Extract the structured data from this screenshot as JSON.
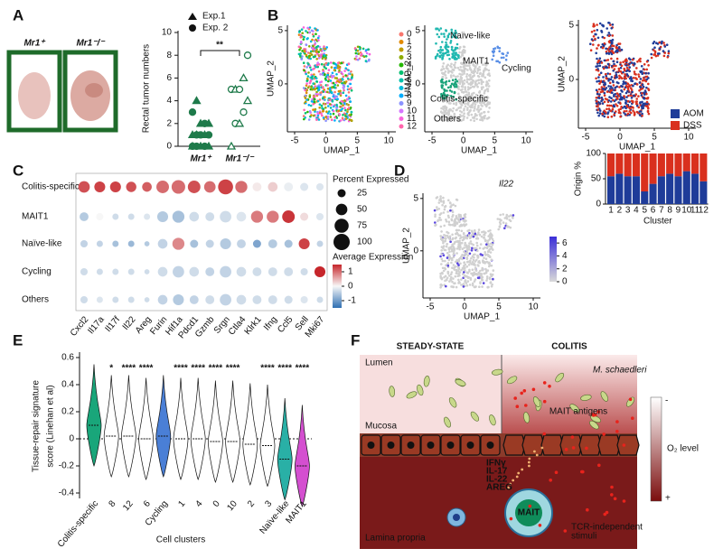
{
  "panel_a": {
    "letter": "A",
    "photo_labels": [
      "Mr1⁺",
      "Mr1⁻/⁻"
    ],
    "legend": [
      "Exp.1",
      "Exp. 2"
    ],
    "y_label": "Rectal tumor numbers",
    "yticks": [
      0,
      2,
      4,
      6,
      8,
      10
    ],
    "significance": "**",
    "categories": [
      "Mr1⁺",
      "Mr1⁻/⁻"
    ],
    "groups": [
      [
        0,
        0,
        0,
        0,
        0,
        0,
        1,
        1,
        1,
        1,
        1,
        1,
        2,
        2,
        2,
        3,
        4
      ],
      [
        0,
        2,
        2,
        3,
        4,
        5,
        5,
        5,
        6,
        8
      ]
    ]
  },
  "panel_b": {
    "letter": "B",
    "umap_x_label": "UMAP_1",
    "umap_y_label": "UMAP_2",
    "xticks": [
      -5,
      0,
      5,
      10
    ],
    "yticks": [
      5,
      0
    ],
    "clusters": [
      "0",
      "1",
      "2",
      "3",
      "4",
      "5",
      "6",
      "7",
      "8",
      "9",
      "10",
      "11",
      "12"
    ],
    "cluster_labels": [
      "Naïve-like",
      "MAIT1",
      "Cycling",
      "Colitis-specific",
      "Others"
    ],
    "origin": {
      "y_label": "Origin %",
      "x_label": "Cluster",
      "yticks": [
        0,
        50,
        100
      ],
      "categories": [
        "1",
        "2",
        "3",
        "4",
        "5",
        "6",
        "7",
        "8",
        "9",
        "10",
        "11",
        "12"
      ],
      "series": [
        {
          "name": "AOM",
          "color": "#1f3c99",
          "values": [
            55,
            60,
            55,
            55,
            25,
            40,
            55,
            60,
            55,
            65,
            60,
            45
          ]
        },
        {
          "name": "DSS",
          "color": "#d9301e",
          "values": [
            45,
            40,
            45,
            45,
            75,
            60,
            45,
            40,
            45,
            35,
            40,
            55
          ]
        }
      ]
    }
  },
  "panel_c": {
    "letter": "C",
    "rows": [
      "Colitis-specific",
      "MAIT1",
      "Naïve-like",
      "Cycling",
      "Others"
    ],
    "genes": [
      "Cxcl2",
      "Il17a",
      "Il17f",
      "Il22",
      "Areg",
      "Furin",
      "Hif1a",
      "Pdcd1",
      "Gzmb",
      "Srgn",
      "Ctla4",
      "Klrk1",
      "Ifng",
      "Ccl5",
      "Sell",
      "Mki67"
    ],
    "percent": [
      [
        50,
        45,
        45,
        40,
        35,
        60,
        70,
        60,
        50,
        85,
        55,
        30,
        35,
        30,
        25,
        20
      ],
      [
        30,
        20,
        15,
        15,
        15,
        45,
        55,
        35,
        30,
        50,
        35,
        55,
        55,
        60,
        25,
        20
      ],
      [
        20,
        15,
        15,
        15,
        10,
        35,
        55,
        25,
        25,
        45,
        30,
        25,
        30,
        25,
        45,
        15
      ],
      [
        20,
        15,
        15,
        15,
        10,
        35,
        50,
        35,
        30,
        50,
        35,
        30,
        30,
        30,
        20,
        45
      ],
      [
        20,
        15,
        15,
        15,
        10,
        35,
        45,
        30,
        30,
        50,
        35,
        30,
        30,
        25,
        20,
        15
      ]
    ],
    "expression": [
      [
        1.2,
        1.3,
        1.3,
        1.2,
        1.1,
        1.0,
        1.0,
        1.2,
        1.0,
        1.3,
        1.0,
        0.1,
        0.3,
        -0.1,
        -0.2,
        -0.2
      ],
      [
        -0.5,
        0,
        -0.3,
        -0.3,
        -0.2,
        -0.5,
        -0.6,
        -0.3,
        -0.3,
        -0.3,
        -0.2,
        0.9,
        0.9,
        1.4,
        0.2,
        -0.2
      ],
      [
        -0.4,
        -0.4,
        -0.6,
        -0.7,
        -0.5,
        -0.4,
        0.8,
        -0.6,
        -0.4,
        -0.5,
        -0.4,
        -0.9,
        -0.5,
        -0.6,
        1.3,
        -0.4
      ],
      [
        -0.3,
        -0.3,
        -0.3,
        -0.3,
        -0.3,
        -0.3,
        -0.4,
        -0.3,
        -0.4,
        -0.4,
        -0.3,
        -0.3,
        -0.3,
        -0.3,
        -0.3,
        1.5
      ],
      [
        -0.3,
        -0.2,
        -0.3,
        -0.3,
        -0.3,
        -0.4,
        -0.5,
        -0.4,
        -0.3,
        -0.4,
        -0.3,
        -0.3,
        -0.3,
        -0.3,
        -0.2,
        -0.3
      ]
    ],
    "size_title": "Percent Expressed",
    "size_ticks": [
      25,
      50,
      75,
      100
    ],
    "color_title": "Average Expression",
    "color_ticks": [
      1,
      0,
      -1
    ]
  },
  "panel_d": {
    "letter": "D",
    "gene": "Il22",
    "colorbar_ticks": [
      6,
      4,
      2,
      0
    ]
  },
  "panel_e": {
    "letter": "E",
    "y_label": [
      "Tissue-repair signature",
      "score (Linehan et al)"
    ],
    "yticks": [
      0.6,
      0.4,
      0.2,
      0.0,
      -0.2,
      -0.4
    ],
    "x_label": "Cell clusters",
    "categories": [
      "Colitis-specific",
      "8",
      "12",
      "6",
      "Cycling",
      "1",
      "4",
      "0",
      "10",
      "2",
      "3",
      "Naïve-like",
      "MAIT1"
    ],
    "colors": [
      "#19a67a",
      "#ffffff",
      "#ffffff",
      "#ffffff",
      "#4a7fd6",
      "#ffffff",
      "#ffffff",
      "#ffffff",
      "#ffffff",
      "#ffffff",
      "#ffffff",
      "#29b0a6",
      "#d44fd0"
    ],
    "medians": [
      0.1,
      0.02,
      0.02,
      0.0,
      0.02,
      0.0,
      0.0,
      -0.02,
      -0.02,
      -0.04,
      -0.05,
      -0.15,
      -0.2
    ],
    "stars": [
      null,
      "*",
      "****",
      "****",
      null,
      "****",
      "****",
      "****",
      "****",
      null,
      "****",
      "****",
      "****"
    ]
  },
  "panel_f": {
    "letter": "F",
    "steady": "STEADY-STATE",
    "colitis": "COLITIS",
    "lumen": "Lumen",
    "mucosa": "Mucosa",
    "lamina": "Lamina propria",
    "bacterium": "M. schaedleri",
    "antigens": "MAIT antigens",
    "o2": "O₂ level",
    "o2_low": "-",
    "o2_high": "+",
    "cytokines": [
      "IFNγ",
      "IL-17",
      "IL-22",
      "AREG"
    ],
    "mait": "MAIT",
    "stimuli": [
      "TCR-independent",
      "stimuli"
    ]
  }
}
